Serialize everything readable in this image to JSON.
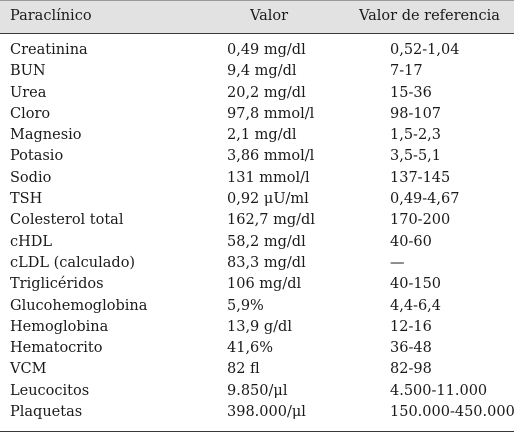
{
  "header": {
    "param": "Paraclínico",
    "value": "Valor",
    "reference": "Valor de referencia"
  },
  "rows": [
    {
      "param": "Creatinina",
      "value": "0,49 mg/dl",
      "reference": "0,52-1,04"
    },
    {
      "param": "BUN",
      "value": "9,4 mg/dl",
      "reference": "7-17"
    },
    {
      "param": "Urea",
      "value": "20,2 mg/dl",
      "reference": "15-36"
    },
    {
      "param": "Cloro",
      "value": "97,8 mmol/l",
      "reference": "98-107"
    },
    {
      "param": "Magnesio",
      "value": "2,1 mg/dl",
      "reference": "1,5-2,3"
    },
    {
      "param": "Potasio",
      "value": "3,86 mmol/l",
      "reference": "3,5-5,1"
    },
    {
      "param": "Sodio",
      "value": "131 mmol/l",
      "reference": "137-145"
    },
    {
      "param": "TSH",
      "value": "0,92 μU/ml",
      "reference": "0,49-4,67"
    },
    {
      "param": "Colesterol total",
      "value": "162,7 mg/dl",
      "reference": "170-200"
    },
    {
      "param": "cHDL",
      "value": "58,2 mg/dl",
      "reference": "40-60"
    },
    {
      "param": "cLDL (calculado)",
      "value": "83,3 mg/dl",
      "reference": "—"
    },
    {
      "param": "Triglicéridos",
      "value": "106 mg/dl",
      "reference": "40-150"
    },
    {
      "param": "Glucohemoglobina",
      "value": "5,9%",
      "reference": "4,4-6,4"
    },
    {
      "param": "Hemoglobina",
      "value": "13,9 g/dl",
      "reference": "12-16"
    },
    {
      "param": "Hematocrito",
      "value": "41,6%",
      "reference": "36-48"
    },
    {
      "param": "VCM",
      "value": "82 fl",
      "reference": "82-98"
    },
    {
      "param": "Leucocitos",
      "value": "9.850/μl",
      "reference": "4.500-11.000"
    },
    {
      "param": "Plaquetas",
      "value": "398.000/μl",
      "reference": "150.000-450.000"
    }
  ]
}
